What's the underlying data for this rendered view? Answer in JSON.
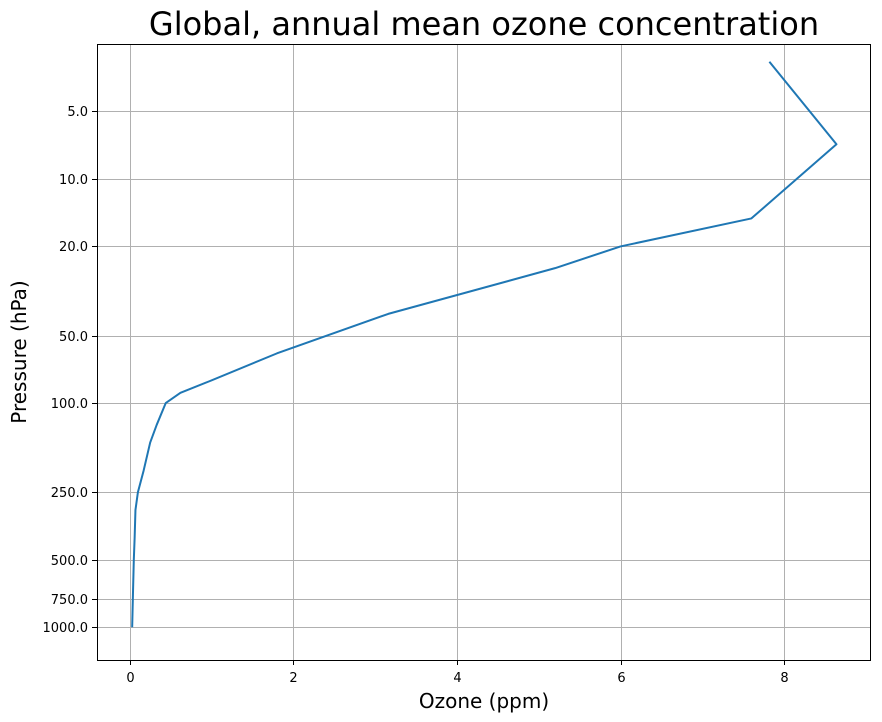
{
  "chart_data": {
    "type": "line",
    "title": "Global, annual mean ozone concentration",
    "xlabel": "Ozone (ppm)",
    "ylabel": "Pressure (hPa)",
    "xticks": [
      0,
      2,
      4,
      6,
      8
    ],
    "yticks": [
      5.0,
      10.0,
      20.0,
      50.0,
      100.0,
      250.0,
      500.0,
      750.0,
      1000.0
    ],
    "ytick_labels": [
      "5.0",
      "10.0",
      "20.0",
      "50.0",
      "100.0",
      "250.0",
      "500.0",
      "750.0",
      "1000.0"
    ],
    "xlim": [
      -0.4,
      9.05
    ],
    "ylim_top": 2.5,
    "ylim_bottom": 1400,
    "y_scale": "log",
    "y_inverted": true,
    "grid": true,
    "line_color": "#1f77b4",
    "series": [
      {
        "x": [
          7.82,
          8.64,
          7.6,
          6.0,
          5.2,
          3.16,
          1.8,
          0.97,
          0.62,
          0.44,
          0.33,
          0.25,
          0.17,
          0.1,
          0.07,
          0.06,
          0.05,
          0.04,
          0.03
        ],
        "y": [
          3.0,
          7.0,
          15.0,
          20.0,
          25.0,
          40.0,
          60.0,
          80.0,
          90.0,
          100.0,
          125.0,
          150.0,
          200.0,
          250.0,
          300.0,
          400.0,
          500.0,
          700.0,
          1000.0
        ]
      }
    ]
  }
}
